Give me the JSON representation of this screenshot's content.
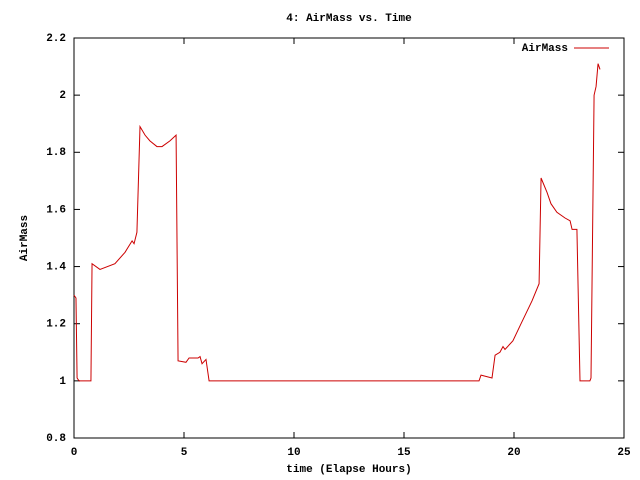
{
  "chart_data": {
    "type": "line",
    "title": "4: AirMass vs. Time",
    "x_label": "time (Elapse Hours)",
    "y_label": "AirMass",
    "x": [
      0,
      0.09,
      0.14,
      0.23,
      0.77,
      0.82,
      1.18,
      1.86,
      2.32,
      2.64,
      2.73,
      2.86,
      3.0,
      3.23,
      3.45,
      3.77,
      4.0,
      4.36,
      4.64,
      4.73,
      5.09,
      5.23,
      5.64,
      5.73,
      5.82,
      6.0,
      6.14,
      18.41,
      18.5,
      19.0,
      19.14,
      19.36,
      19.5,
      19.59,
      19.95,
      20.32,
      20.82,
      21.14,
      21.23,
      21.5,
      21.68,
      21.95,
      22.32,
      22.55,
      22.64,
      22.86,
      23.0,
      23.45,
      23.5,
      23.64,
      23.73,
      23.82,
      23.91
    ],
    "series": [
      {
        "name": "AirMass",
        "color": "#cc0000",
        "values": [
          1.3,
          1.29,
          1.01,
          1.0,
          1.0,
          1.41,
          1.39,
          1.41,
          1.45,
          1.49,
          1.48,
          1.52,
          1.89,
          1.86,
          1.84,
          1.82,
          1.82,
          1.84,
          1.86,
          1.07,
          1.065,
          1.08,
          1.08,
          1.085,
          1.06,
          1.075,
          1.0,
          1.0,
          1.02,
          1.01,
          1.09,
          1.1,
          1.12,
          1.11,
          1.14,
          1.2,
          1.28,
          1.34,
          1.71,
          1.66,
          1.62,
          1.59,
          1.57,
          1.56,
          1.53,
          1.53,
          1.0,
          1.0,
          1.01,
          2.0,
          2.03,
          2.11,
          2.09
        ]
      }
    ],
    "xlim": [
      0,
      25
    ],
    "xticks": [
      0,
      5,
      10,
      15,
      20,
      25
    ],
    "ylim": [
      0.8,
      2.2
    ],
    "yticks": [
      0.8,
      1,
      1.2,
      1.4,
      1.6,
      1.8,
      2,
      2.2
    ],
    "legend": "top-right",
    "grid": false
  }
}
